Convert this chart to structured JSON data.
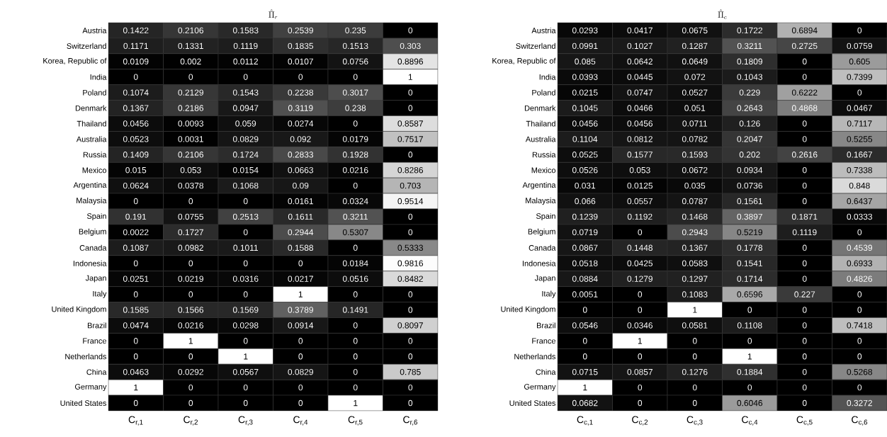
{
  "chart_data": [
    {
      "type": "heatmap",
      "title": "\\hat{\\Pi}_r",
      "data_labels": true,
      "categories": [
        "C$_{r,1}$",
        "C$_{r,2}$",
        "C$_{r,3}$",
        "C$_{r,4}$",
        "C$_{r,5}$",
        "C$_{r,6}$"
      ],
      "y_categories": [
        "Austria",
        "Switzerland",
        "Korea, Republic of",
        "India",
        "Poland",
        "Denmark",
        "Thailand",
        "Australia",
        "Russia",
        "Mexico",
        "Argentina",
        "Malaysia",
        "Spain",
        "Belgium",
        "Canada",
        "Indonesia",
        "Japan",
        "Italy",
        "United Kingdom",
        "Brazil",
        "France",
        "Netherlands",
        "China",
        "Germany",
        "United States"
      ],
      "cells": [
        [
          0.1422,
          0.2106,
          0.1583,
          0.2539,
          0.235,
          0
        ],
        [
          0.1171,
          0.1331,
          0.1119,
          0.1835,
          0.1513,
          0.303
        ],
        [
          0.0109,
          0.002,
          0.0112,
          0.0107,
          0.0756,
          0.8896
        ],
        [
          0,
          0,
          0,
          0,
          0,
          1
        ],
        [
          0.1074,
          0.2129,
          0.1543,
          0.2238,
          0.3017,
          0
        ],
        [
          0.1367,
          0.2186,
          0.0947,
          0.3119,
          0.238,
          0
        ],
        [
          0.0456,
          0.0093,
          0.059,
          0.0274,
          0,
          0.8587
        ],
        [
          0.0523,
          0.0031,
          0.0829,
          0.092,
          0.0179,
          0.7517
        ],
        [
          0.1409,
          0.2106,
          0.1724,
          0.2833,
          0.1928,
          0
        ],
        [
          0.015,
          0.053,
          0.0154,
          0.0663,
          0.0216,
          0.8286
        ],
        [
          0.0624,
          0.0378,
          0.1068,
          0.09,
          0,
          0.703
        ],
        [
          0,
          0,
          0,
          0.0161,
          0.0324,
          0.9514
        ],
        [
          0.191,
          0.0755,
          0.2513,
          0.1611,
          0.3211,
          0
        ],
        [
          0.0022,
          0.1727,
          0,
          0.2944,
          0.5307,
          0
        ],
        [
          0.1087,
          0.0982,
          0.1011,
          0.1588,
          0,
          0.5333
        ],
        [
          0,
          0,
          0,
          0,
          0.0184,
          0.9816
        ],
        [
          0.0251,
          0.0219,
          0.0316,
          0.0217,
          0.0516,
          0.8482
        ],
        [
          0,
          0,
          0,
          1,
          0,
          0
        ],
        [
          0.1585,
          0.1566,
          0.1569,
          0.3789,
          0.1491,
          0
        ],
        [
          0.0474,
          0.0216,
          0.0298,
          0.0914,
          0,
          0.8097
        ],
        [
          0,
          1,
          0,
          0,
          0,
          0
        ],
        [
          0,
          0,
          1,
          0,
          0,
          0
        ],
        [
          0.0463,
          0.0292,
          0.0567,
          0.0829,
          0,
          0.785
        ],
        [
          1,
          0,
          0,
          0,
          0,
          0
        ],
        [
          0,
          0,
          0,
          0,
          1,
          0
        ]
      ]
    },
    {
      "type": "heatmap",
      "title": "\\hat{\\Pi}_c",
      "data_labels": true,
      "categories": [
        "C$_{c,1}$",
        "C$_{c,2}$",
        "C$_{c,3}$",
        "C$_{c,4}$",
        "C$_{c,5}$",
        "C$_{c,6}$"
      ],
      "y_categories": [
        "Austria",
        "Switzerland",
        "Korea, Republic of",
        "India",
        "Poland",
        "Denmark",
        "Thailand",
        "Australia",
        "Russia",
        "Mexico",
        "Argentina",
        "Malaysia",
        "Spain",
        "Belgium",
        "Canada",
        "Indonesia",
        "Japan",
        "Italy",
        "United Kingdom",
        "Brazil",
        "France",
        "Netherlands",
        "China",
        "Germany",
        "United States"
      ],
      "cells": [
        [
          0.0293,
          0.0417,
          0.0675,
          0.1722,
          0.6894,
          0
        ],
        [
          0.0991,
          0.1027,
          0.1287,
          0.3211,
          0.2725,
          0.0759
        ],
        [
          0.085,
          0.0642,
          0.0649,
          0.1809,
          0,
          0.605
        ],
        [
          0.0393,
          0.0445,
          0.072,
          0.1043,
          0,
          0.7399
        ],
        [
          0.0215,
          0.0747,
          0.0527,
          0.229,
          0.6222,
          0
        ],
        [
          0.1045,
          0.0466,
          0.051,
          0.2643,
          0.4868,
          0.0467
        ],
        [
          0.0456,
          0.0456,
          0.0711,
          0.126,
          0,
          0.7117
        ],
        [
          0.1104,
          0.0812,
          0.0782,
          0.2047,
          0,
          0.5255
        ],
        [
          0.0525,
          0.1577,
          0.1593,
          0.202,
          0.2616,
          0.1667
        ],
        [
          0.0526,
          0.053,
          0.0672,
          0.0934,
          0,
          0.7338
        ],
        [
          0.031,
          0.0125,
          0.035,
          0.0736,
          0,
          0.848
        ],
        [
          0.066,
          0.0557,
          0.0787,
          0.1561,
          0,
          0.6437
        ],
        [
          0.1239,
          0.1192,
          0.1468,
          0.3897,
          0.1871,
          0.0333
        ],
        [
          0.0719,
          0,
          0.2943,
          0.5219,
          0.1119,
          0
        ],
        [
          0.0867,
          0.1448,
          0.1367,
          0.1778,
          0,
          0.4539
        ],
        [
          0.0518,
          0.0425,
          0.0583,
          0.1541,
          0,
          0.6933
        ],
        [
          0.0884,
          0.1279,
          0.1297,
          0.1714,
          0,
          0.4826
        ],
        [
          0.0051,
          0,
          0.1083,
          0.6596,
          0.227,
          0
        ],
        [
          0,
          0,
          1,
          0,
          0,
          0
        ],
        [
          0.0546,
          0.0346,
          0.0581,
          0.1108,
          0,
          0.7418
        ],
        [
          0,
          1,
          0,
          0,
          0,
          0
        ],
        [
          0,
          0,
          0,
          1,
          0,
          0
        ],
        [
          0.0715,
          0.0857,
          0.1276,
          0.1884,
          0,
          0.5268
        ],
        [
          1,
          0,
          0,
          0,
          0,
          0
        ],
        [
          0.0682,
          0,
          0,
          0.6046,
          0,
          0.3272
        ]
      ]
    }
  ]
}
